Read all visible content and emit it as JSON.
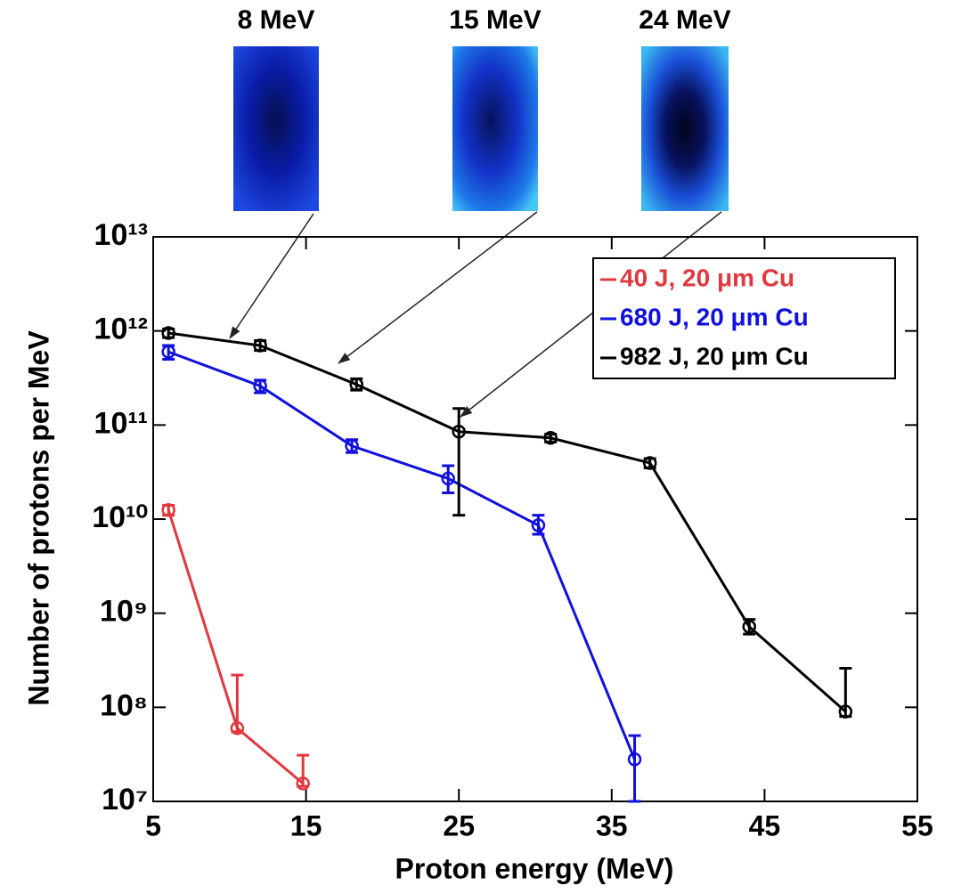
{
  "chart_data": {
    "type": "line",
    "xlabel": "Proton energy (MeV)",
    "ylabel": "Number of protons per MeV",
    "annotations": [
      "8 MeV",
      "15 MeV",
      "24 MeV"
    ],
    "log_y": true,
    "grid": false,
    "legend": "upper right",
    "xlim": [
      5,
      55
    ],
    "xticks": [
      5,
      15,
      25,
      35,
      45,
      55
    ],
    "ylim": [
      10000000,
      10000000000000
    ],
    "yticks": [
      {
        "value": 10000000,
        "label": "10⁷"
      },
      {
        "value": 100000000,
        "label": "10⁸"
      },
      {
        "value": 1000000000,
        "label": "10⁹"
      },
      {
        "value": 10000000000,
        "label": "10¹⁰"
      },
      {
        "value": 100000000000,
        "label": "10¹¹"
      },
      {
        "value": 1000000000000,
        "label": "10¹²"
      },
      {
        "value": 10000000000000,
        "label": "10¹³"
      }
    ],
    "series": [
      {
        "name": "40 J, 20 μm Cu",
        "color": "#e0383e",
        "x": [
          6,
          10.5,
          14.8
        ],
        "values": [
          12500000000,
          60000000,
          15500000
        ],
        "err_lo": [
          11000000000,
          55000000,
          14500000
        ],
        "err_hi": [
          14000000000,
          220000000,
          31000000
        ]
      },
      {
        "name": "680 J, 20 μm Cu",
        "color": "#1010e0",
        "x": [
          6,
          12,
          18,
          24.3,
          30.2,
          36.5
        ],
        "values": [
          600000000000,
          260000000000,
          60000000000,
          27000000000,
          8600000000,
          28000000
        ],
        "err_lo": [
          500000000000,
          220000000000,
          51000000000,
          19000000000,
          6900000000,
          10000000
        ],
        "err_hi": [
          700000000000,
          300000000000,
          70000000000,
          37000000000,
          11000000000,
          50000000
        ]
      },
      {
        "name": "982 J, 20 μm Cu",
        "color": "#000000",
        "x": [
          6,
          12,
          18.3,
          25,
          31,
          37.5,
          44,
          50.3
        ],
        "values": [
          950000000000,
          700000000000,
          270000000000,
          85000000000,
          73000000000,
          39500000000,
          720000000,
          90000000
        ],
        "err_lo": [
          850000000000,
          620000000000,
          235000000000,
          11000000000,
          66000000000,
          35000000000,
          600000000,
          80000000
        ],
        "err_hi": [
          1050000000000,
          790000000000,
          310000000000,
          150000000000,
          80000000000,
          44000000000,
          860000000,
          260000000
        ]
      }
    ]
  }
}
